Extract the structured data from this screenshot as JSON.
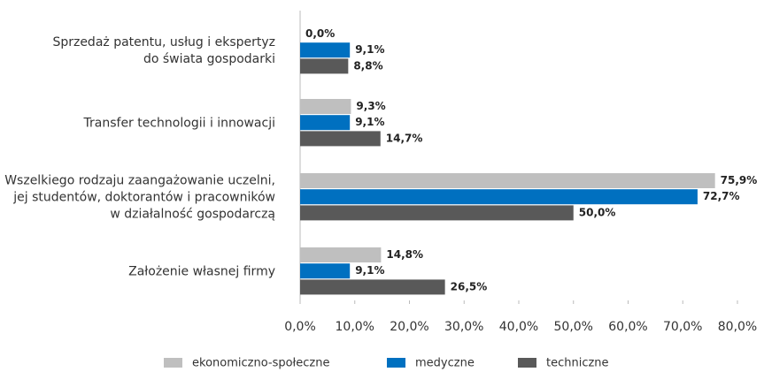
{
  "chart_data": {
    "type": "barh",
    "categories": [
      [
        "Sprzedaż patentu, usług i ekspertyz",
        "do świata gospodarki"
      ],
      [
        "Transfer technologii i innowacji"
      ],
      [
        "Wszelkiego rodzaju zaangażowanie uczelni,",
        "jej studentów, doktorantów i pracowników",
        "w działalność gospodarczą"
      ],
      [
        "Założenie własnej firmy"
      ]
    ],
    "series": [
      {
        "name": "ekonomiczno-społeczne",
        "color": "#bfbfbf",
        "values": [
          0.0,
          9.3,
          75.9,
          14.8
        ],
        "value_labels": [
          "0,0%",
          "9,3%",
          "75,9%",
          "14,8%"
        ]
      },
      {
        "name": "medyczne",
        "color": "#0070c0",
        "values": [
          9.1,
          9.1,
          72.7,
          9.1
        ],
        "value_labels": [
          "9,1%",
          "9,1%",
          "72,7%",
          "9,1%"
        ]
      },
      {
        "name": "techniczne",
        "color": "#595959",
        "values": [
          8.8,
          14.7,
          50.0,
          26.5
        ],
        "value_labels": [
          "8,8%",
          "14,7%",
          "50,0%",
          "26,5%"
        ]
      }
    ],
    "xlim": [
      0,
      80
    ],
    "xticks": [
      {
        "value": 0,
        "label": "0,0%"
      },
      {
        "value": 10,
        "label": "10,0%"
      },
      {
        "value": 20,
        "label": "20,0%"
      },
      {
        "value": 30,
        "label": "30,0%"
      },
      {
        "value": 40,
        "label": "40,0%"
      },
      {
        "value": 50,
        "label": "50,0%"
      },
      {
        "value": 60,
        "label": "60,0%"
      },
      {
        "value": 70,
        "label": "70,0%"
      },
      {
        "value": 80,
        "label": "80,0%"
      }
    ],
    "legend": "bottom"
  }
}
